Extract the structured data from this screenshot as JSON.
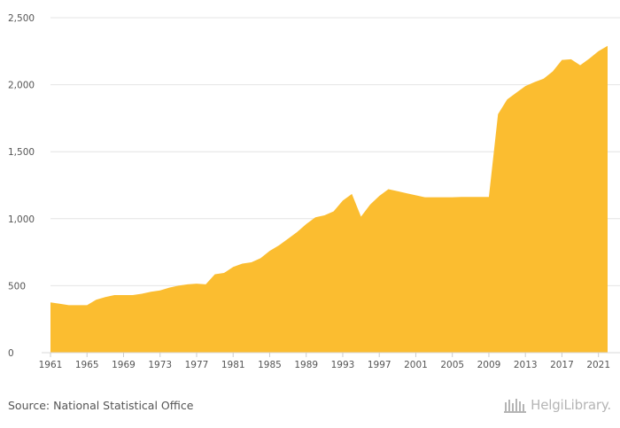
{
  "chart_data": {
    "type": "area",
    "title": "",
    "xlabel": "",
    "ylabel": "",
    "ylim": [
      0,
      2500
    ],
    "xlim": [
      1961,
      2022
    ],
    "grid": true,
    "color": "#fbbd30",
    "yticks": [
      0,
      500,
      1000,
      1500,
      2000,
      2500
    ],
    "ytick_labels": [
      "0",
      "500",
      "1,000",
      "1,500",
      "2,000",
      "2,500"
    ],
    "xtick_labels": [
      "1961",
      "1965",
      "1969",
      "1973",
      "1977",
      "1981",
      "1985",
      "1989",
      "1993",
      "1997",
      "2001",
      "2005",
      "2009",
      "2013",
      "2017",
      "2021"
    ],
    "x": [
      1961,
      1962,
      1963,
      1964,
      1965,
      1966,
      1967,
      1968,
      1969,
      1970,
      1971,
      1972,
      1973,
      1974,
      1975,
      1976,
      1977,
      1978,
      1979,
      1980,
      1981,
      1982,
      1983,
      1984,
      1985,
      1986,
      1987,
      1988,
      1989,
      1990,
      1991,
      1992,
      1993,
      1994,
      1995,
      1996,
      1997,
      1998,
      1999,
      2000,
      2001,
      2002,
      2003,
      2004,
      2005,
      2006,
      2007,
      2008,
      2009,
      2010,
      2011,
      2012,
      2013,
      2014,
      2015,
      2016,
      2017,
      2018,
      2019,
      2020,
      2021,
      2022
    ],
    "values": [
      375,
      365,
      355,
      355,
      355,
      395,
      415,
      430,
      430,
      430,
      440,
      455,
      465,
      485,
      500,
      510,
      515,
      510,
      585,
      595,
      640,
      665,
      675,
      705,
      760,
      800,
      850,
      900,
      960,
      1010,
      1025,
      1055,
      1135,
      1185,
      1015,
      1105,
      1170,
      1220,
      1205,
      1190,
      1175,
      1160,
      1160,
      1160,
      1160,
      1162,
      1162,
      1162,
      1162,
      1780,
      1890,
      1940,
      1990,
      2020,
      2045,
      2100,
      2185,
      2190,
      2145,
      2195,
      2250,
      2290
    ]
  },
  "footer": {
    "source": "Source: National Statistical Office",
    "brand": "HelgiLibrary."
  }
}
